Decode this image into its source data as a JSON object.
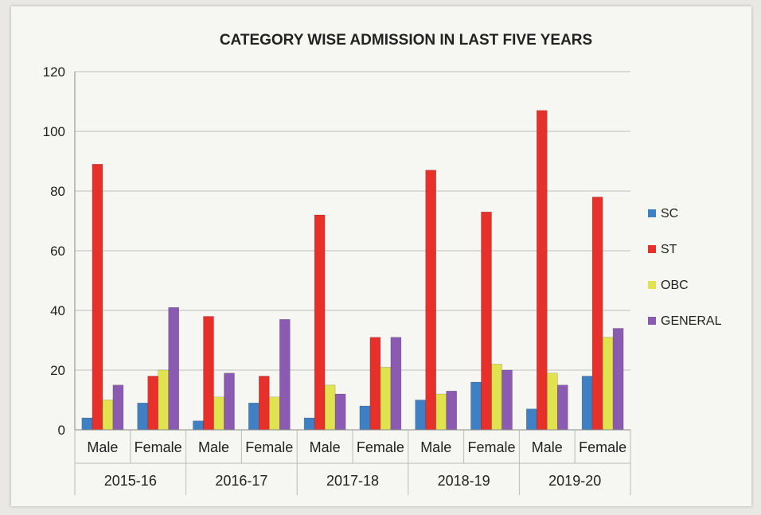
{
  "chart_data": {
    "type": "bar",
    "title": "CATEGORY WISE ADMISSION IN LAST FIVE YEARS",
    "xlabel": "",
    "ylabel": "",
    "ylim": [
      0,
      120
    ],
    "yticks": [
      "0",
      "20",
      "40",
      "60",
      "80",
      "100",
      "120"
    ],
    "grid": true,
    "legend_position": "right",
    "groups": [
      "2015-16",
      "2016-17",
      "2017-18",
      "2018-19",
      "2019-20"
    ],
    "subcategories": [
      "Male",
      "Female"
    ],
    "categories": [
      "Male",
      "Female",
      "Male",
      "Female",
      "Male",
      "Female",
      "Male",
      "Female",
      "Male",
      "Female"
    ],
    "series": [
      {
        "name": "SC",
        "color": "#3f7fc4",
        "values": [
          4,
          9,
          3,
          9,
          4,
          8,
          10,
          16,
          7,
          18
        ]
      },
      {
        "name": "ST",
        "color": "#e8302b",
        "values": [
          89,
          18,
          38,
          18,
          72,
          31,
          87,
          73,
          107,
          78
        ]
      },
      {
        "name": "OBC",
        "color": "#e0e34f",
        "values": [
          10,
          20,
          11,
          11,
          15,
          21,
          12,
          22,
          19,
          31
        ]
      },
      {
        "name": "GENERAL",
        "color": "#8a5bb0",
        "values": [
          15,
          41,
          19,
          37,
          12,
          31,
          13,
          20,
          15,
          34
        ]
      }
    ]
  }
}
